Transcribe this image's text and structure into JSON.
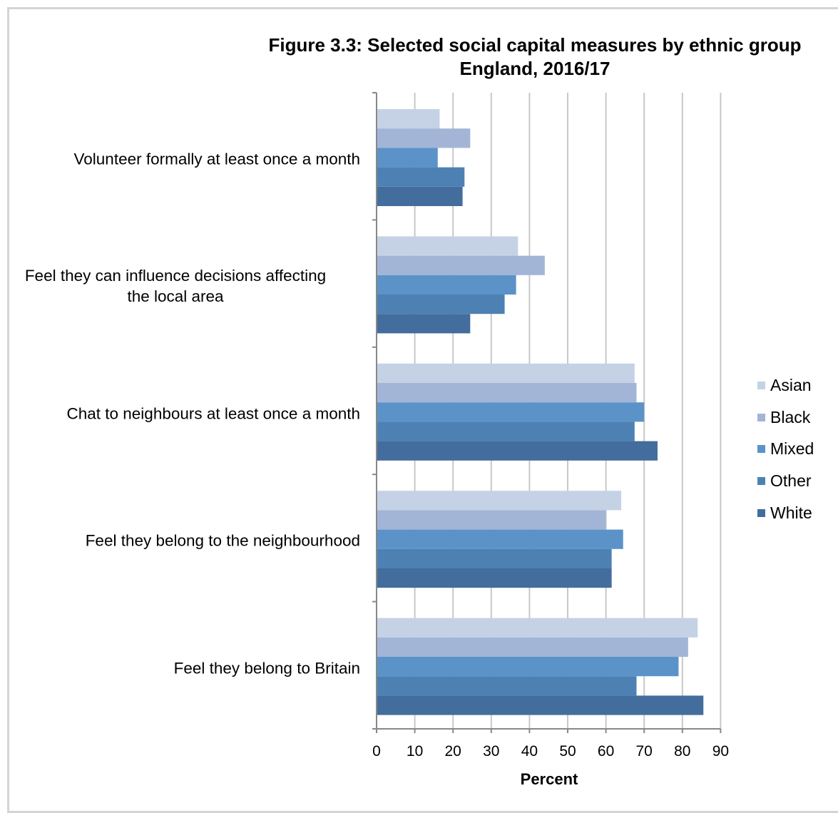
{
  "chart_data": {
    "type": "bar",
    "orientation": "horizontal",
    "title": "Figure 3.3: Selected social capital measures by ethnic group",
    "subtitle": "England, 2016/17",
    "xlabel": "Percent",
    "ylabel": "",
    "xlim": [
      0,
      90
    ],
    "xticks": [
      0,
      10,
      20,
      30,
      40,
      50,
      60,
      70,
      80,
      90
    ],
    "grid": "vertical",
    "legend_position": "right",
    "categories": [
      [
        "Volunteer formally at least once a month"
      ],
      [
        "Feel they can influence decisions affecting",
        "the local area"
      ],
      [
        "Chat to neighbours at least once a month"
      ],
      [
        "Feel they belong to the neighbourhood"
      ],
      [
        "Feel they belong to Britain"
      ]
    ],
    "series": [
      {
        "name": "Asian",
        "color": "#c5d2e5",
        "values": [
          16.5,
          37,
          67.5,
          64,
          84
        ]
      },
      {
        "name": "Black",
        "color": "#a2b5d7",
        "values": [
          24.5,
          44,
          68,
          60,
          81.5
        ]
      },
      {
        "name": "Mixed",
        "color": "#5b93c8",
        "values": [
          16,
          36.5,
          70,
          64.5,
          79
        ]
      },
      {
        "name": "Other",
        "color": "#4d81b4",
        "values": [
          23,
          33.5,
          67.5,
          61.5,
          68
        ]
      },
      {
        "name": "White",
        "color": "#436d9c",
        "values": [
          22.5,
          24.5,
          73.5,
          61.5,
          85.5
        ]
      }
    ]
  }
}
